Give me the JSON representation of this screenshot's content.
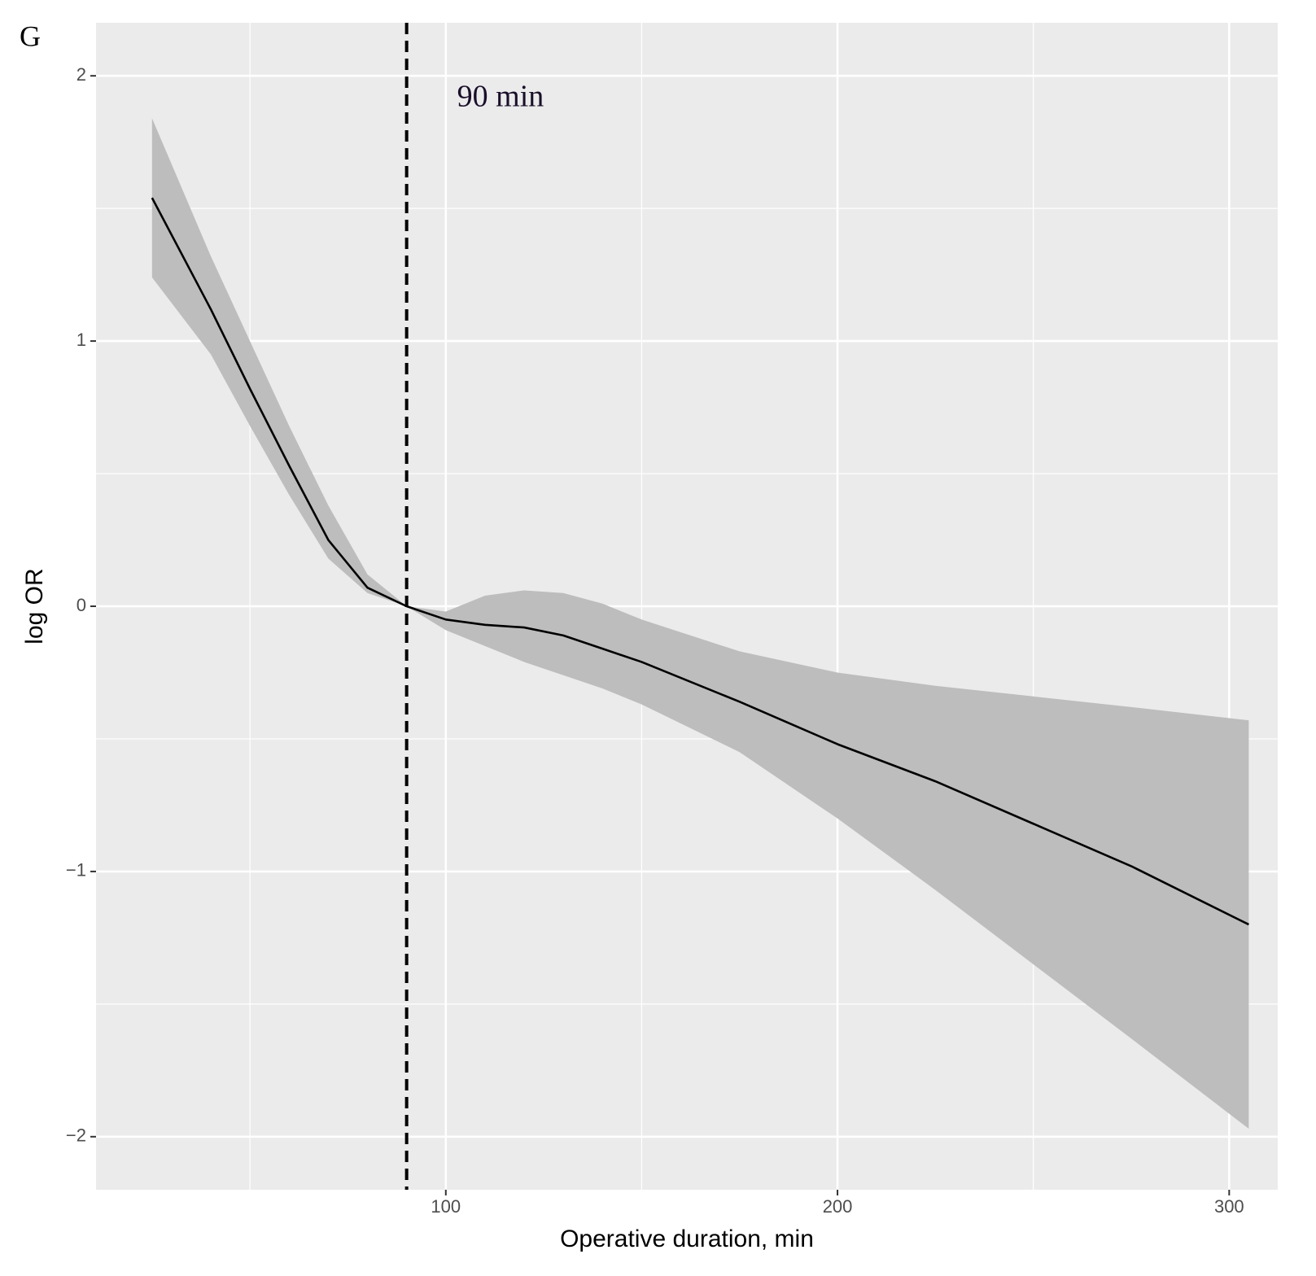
{
  "chart_data": {
    "type": "line",
    "panel_label": "G",
    "annotation": "90 min",
    "vline": 90,
    "xlabel": "Operative duration, min",
    "ylabel": "log OR",
    "x": [
      25,
      40,
      50,
      60,
      70,
      80,
      90,
      100,
      110,
      120,
      130,
      140,
      150,
      175,
      200,
      225,
      250,
      275,
      305
    ],
    "values": [
      1.54,
      1.12,
      0.82,
      0.53,
      0.25,
      0.07,
      0,
      -0.05,
      -0.07,
      -0.08,
      -0.11,
      -0.16,
      -0.21,
      -0.36,
      -0.52,
      -0.66,
      -0.82,
      -0.98,
      -1.2
    ],
    "lower": [
      1.24,
      0.95,
      0.68,
      0.42,
      0.18,
      0.05,
      0,
      -0.09,
      -0.15,
      -0.21,
      -0.26,
      -0.31,
      -0.37,
      -0.55,
      -0.8,
      -1.07,
      -1.35,
      -1.63,
      -1.97
    ],
    "upper": [
      1.84,
      1.32,
      1.0,
      0.68,
      0.38,
      0.12,
      0,
      -0.02,
      0.04,
      0.06,
      0.05,
      0.01,
      -0.05,
      -0.17,
      -0.25,
      -0.3,
      -0.34,
      -0.38,
      -0.43
    ],
    "color": "#000000",
    "band_color": "#bdbdbd",
    "xlim": [
      10.7,
      312.4
    ],
    "ylim": [
      -2.2,
      2.2
    ],
    "xticks": [
      100,
      200,
      300
    ],
    "yticks": [
      {
        "value": -2,
        "label": "−2"
      },
      {
        "value": -1,
        "label": "−1"
      },
      0,
      1,
      2
    ],
    "xminor": [
      50,
      150,
      250
    ],
    "yminor": [
      -1.5,
      -0.5,
      0.5,
      1.5
    ],
    "grid": true
  }
}
